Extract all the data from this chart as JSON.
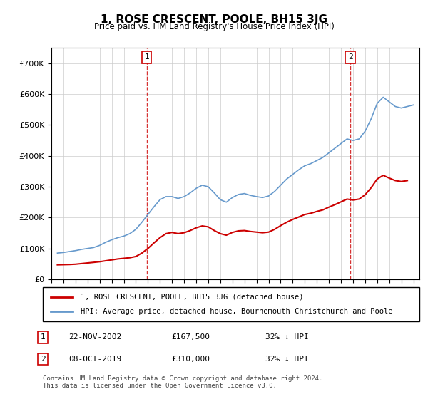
{
  "title": "1, ROSE CRESCENT, POOLE, BH15 3JG",
  "subtitle": "Price paid vs. HM Land Registry's House Price Index (HPI)",
  "legend_line1": "1, ROSE CRESCENT, POOLE, BH15 3JG (detached house)",
  "legend_line2": "HPI: Average price, detached house, Bournemouth Christchurch and Poole",
  "annotation1_label": "1",
  "annotation1_date": "22-NOV-2002",
  "annotation1_price": "£167,500",
  "annotation1_hpi": "32% ↓ HPI",
  "annotation1_year": 2002.9,
  "annotation2_label": "2",
  "annotation2_date": "08-OCT-2019",
  "annotation2_price": "£310,000",
  "annotation2_hpi": "32% ↓ HPI",
  "annotation2_year": 2019.77,
  "footer": "Contains HM Land Registry data © Crown copyright and database right 2024.\nThis data is licensed under the Open Government Licence v3.0.",
  "red_line_color": "#cc0000",
  "blue_line_color": "#6699cc",
  "vline_color": "#cc0000",
  "background_color": "#ffffff",
  "ylim": [
    0,
    750000
  ],
  "xlim_start": 1995.0,
  "xlim_end": 2025.5,
  "hpi_data": {
    "years": [
      1995.5,
      1996.0,
      1996.5,
      1997.0,
      1997.5,
      1998.0,
      1998.5,
      1999.0,
      1999.5,
      2000.0,
      2000.5,
      2001.0,
      2001.5,
      2002.0,
      2002.5,
      2003.0,
      2003.5,
      2004.0,
      2004.5,
      2005.0,
      2005.5,
      2006.0,
      2006.5,
      2007.0,
      2007.5,
      2008.0,
      2008.5,
      2009.0,
      2009.5,
      2010.0,
      2010.5,
      2011.0,
      2011.5,
      2012.0,
      2012.5,
      2013.0,
      2013.5,
      2014.0,
      2014.5,
      2015.0,
      2015.5,
      2016.0,
      2016.5,
      2017.0,
      2017.5,
      2018.0,
      2018.5,
      2019.0,
      2019.5,
      2020.0,
      2020.5,
      2021.0,
      2021.5,
      2022.0,
      2022.5,
      2023.0,
      2023.5,
      2024.0,
      2024.5,
      2025.0
    ],
    "values": [
      85000,
      87000,
      90000,
      93000,
      97000,
      100000,
      103000,
      110000,
      120000,
      128000,
      135000,
      140000,
      148000,
      162000,
      185000,
      210000,
      235000,
      258000,
      268000,
      268000,
      262000,
      268000,
      280000,
      295000,
      305000,
      300000,
      280000,
      258000,
      250000,
      265000,
      275000,
      278000,
      272000,
      268000,
      265000,
      270000,
      285000,
      305000,
      325000,
      340000,
      355000,
      368000,
      375000,
      385000,
      395000,
      410000,
      425000,
      440000,
      455000,
      450000,
      455000,
      480000,
      520000,
      570000,
      590000,
      575000,
      560000,
      555000,
      560000,
      565000
    ]
  },
  "price_data": {
    "years": [
      1995.5,
      1996.0,
      1996.5,
      1997.0,
      1997.5,
      1998.0,
      1998.5,
      1999.0,
      1999.5,
      2000.0,
      2000.5,
      2001.0,
      2001.5,
      2002.0,
      2002.5,
      2003.0,
      2003.5,
      2004.0,
      2004.5,
      2005.0,
      2005.5,
      2006.0,
      2006.5,
      2007.0,
      2007.5,
      2008.0,
      2008.5,
      2009.0,
      2009.5,
      2010.0,
      2010.5,
      2011.0,
      2011.5,
      2012.0,
      2012.5,
      2013.0,
      2013.5,
      2014.0,
      2014.5,
      2015.0,
      2015.5,
      2016.0,
      2016.5,
      2017.0,
      2017.5,
      2018.0,
      2018.5,
      2019.0,
      2019.5,
      2020.0,
      2020.5,
      2021.0,
      2021.5,
      2022.0,
      2022.5,
      2023.0,
      2023.5,
      2024.0,
      2024.5
    ],
    "values": [
      47000,
      47500,
      48000,
      49000,
      51000,
      53000,
      55000,
      57000,
      60000,
      63000,
      66000,
      68000,
      70000,
      74000,
      85000,
      100000,
      118000,
      135000,
      148000,
      152000,
      148000,
      151000,
      158000,
      167000,
      173000,
      170000,
      158000,
      148000,
      143000,
      152000,
      157000,
      158000,
      155000,
      153000,
      151000,
      153000,
      162000,
      174000,
      185000,
      194000,
      202000,
      210000,
      214000,
      220000,
      225000,
      234000,
      242000,
      251000,
      260000,
      257000,
      260000,
      274000,
      297000,
      325000,
      337000,
      328000,
      320000,
      317000,
      320000
    ]
  }
}
